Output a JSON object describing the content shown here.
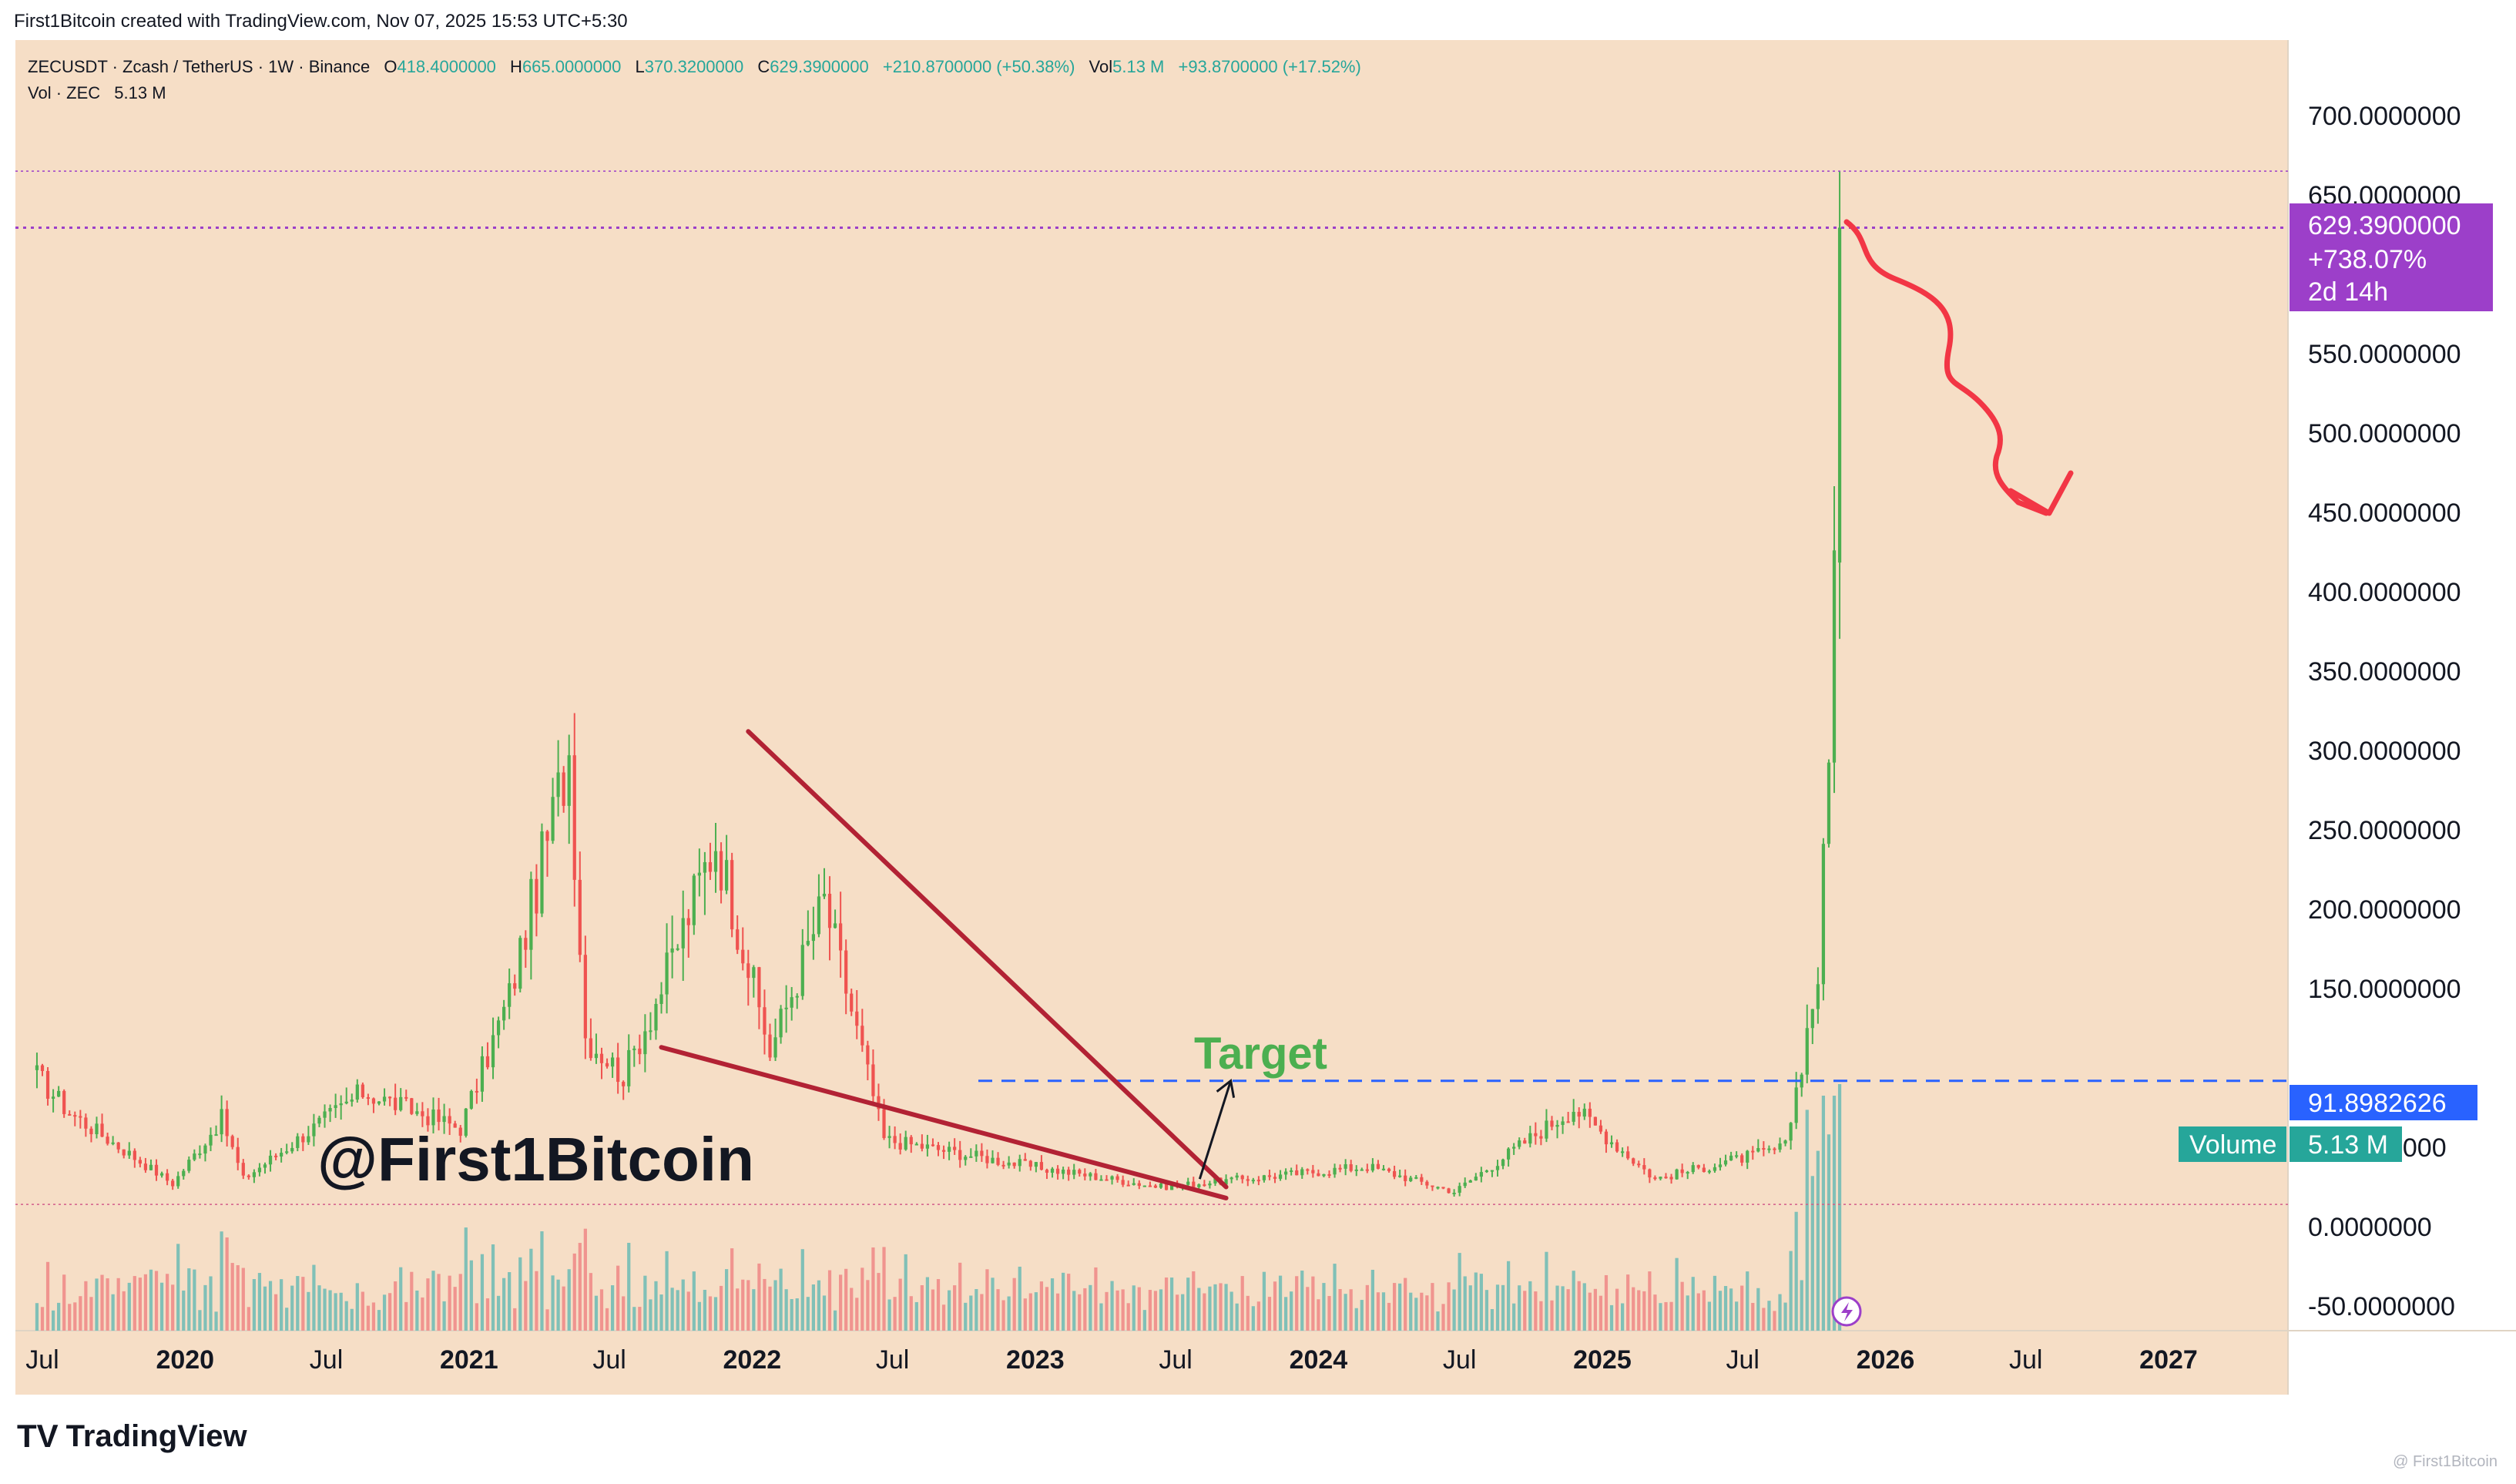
{
  "header": {
    "credit": "First1Bitcoin created with TradingView.com, Nov 07, 2025 15:53 UTC+5:30"
  },
  "legend": {
    "symbol": "ZECUSDT · Zcash / TetherUS · 1W · Binance",
    "o_label": "O",
    "o_value": "418.4000000",
    "h_label": "H",
    "h_value": "665.0000000",
    "l_label": "L",
    "l_value": "370.3200000",
    "c_label": "C",
    "c_value": "629.3900000",
    "change": "+210.8700000 (+50.38%)",
    "vol_label": "Vol",
    "vol_value": "5.13 M",
    "vol_change": "+93.8700000 (+17.52%)",
    "vol_series_label": "Vol · ZEC",
    "vol_series_value": "5.13 M"
  },
  "price_badge": {
    "price": "629.3900000",
    "change": "+738.07%",
    "countdown": "2d 14h"
  },
  "level_badge": {
    "value": "91.8982626"
  },
  "volume_badge": {
    "label": "Volume",
    "value": "5.13 M"
  },
  "annotations": {
    "watermark": "@First1Bitcoin",
    "target": "Target"
  },
  "footer": {
    "brand": "TradingView",
    "corner": "@ First1Bitcoin"
  },
  "colors": {
    "background": "#f6dec6",
    "up": "#4caf50",
    "down": "#ef5350",
    "vol_up": "#80c0b7",
    "vol_down": "#f0948f",
    "badge_price": "#9c3fc9",
    "badge_level": "#2962ff",
    "badge_volume": "#26a69a",
    "trendline": "#b22234",
    "arrow": "#f23645",
    "target": "#4caf50",
    "level_line": "#2962ff"
  },
  "chart_data": {
    "type": "candlestick",
    "title": "ZECUSDT · Zcash / TetherUS · 1W · Binance",
    "y_ticks": [
      700,
      650,
      550,
      500,
      450,
      400,
      350,
      300,
      250,
      200,
      150,
      50,
      0,
      -50
    ],
    "y_tick_labels": [
      "700.0000000",
      "650.0000000",
      "550.0000000",
      "500.0000000",
      "450.0000000",
      "400.0000000",
      "350.0000000",
      "300.0000000",
      "250.0000000",
      "200.0000000",
      "150.0000000",
      "50.0000000",
      "0.0000000",
      "-50.0000000"
    ],
    "ylim": [
      -65,
      760
    ],
    "x_ticks": [
      "Jul",
      "2020",
      "Jul",
      "2021",
      "Jul",
      "2022",
      "Jul",
      "2023",
      "Jul",
      "2024",
      "Jul",
      "2025",
      "Jul",
      "2026",
      "Jul",
      "2027"
    ],
    "x_tick_dates": [
      "2019-07-01",
      "2020-01-01",
      "2020-07-01",
      "2021-01-01",
      "2021-07-01",
      "2022-01-01",
      "2022-07-01",
      "2023-01-01",
      "2023-07-01",
      "2024-01-01",
      "2024-07-01",
      "2025-01-01",
      "2025-07-01",
      "2026-01-01",
      "2026-07-01",
      "2027-01-01"
    ],
    "key_points": [
      {
        "date": "2019-06-24",
        "close": 95
      },
      {
        "date": "2019-08-05",
        "close": 72
      },
      {
        "date": "2019-12-16",
        "close": 27
      },
      {
        "date": "2020-02-17",
        "close": 68
      },
      {
        "date": "2020-03-16",
        "close": 30
      },
      {
        "date": "2020-08-17",
        "close": 85
      },
      {
        "date": "2020-12-21",
        "close": 62
      },
      {
        "date": "2021-02-22",
        "close": 145
      },
      {
        "date": "2021-05-10",
        "close": 300
      },
      {
        "date": "2021-05-31",
        "close": 120
      },
      {
        "date": "2021-07-19",
        "close": 95
      },
      {
        "date": "2021-09-06",
        "close": 150
      },
      {
        "date": "2021-11-15",
        "close": 245
      },
      {
        "date": "2022-01-24",
        "close": 110
      },
      {
        "date": "2022-04-04",
        "close": 205
      },
      {
        "date": "2022-06-20",
        "close": 55
      },
      {
        "date": "2022-12-26",
        "close": 38
      },
      {
        "date": "2023-06-12",
        "close": 25
      },
      {
        "date": "2023-11-06",
        "close": 32
      },
      {
        "date": "2024-03-04",
        "close": 38
      },
      {
        "date": "2024-06-24",
        "close": 22
      },
      {
        "date": "2024-11-25",
        "close": 75
      },
      {
        "date": "2025-03-10",
        "close": 30
      },
      {
        "date": "2025-08-25",
        "close": 50
      },
      {
        "date": "2025-10-06",
        "close": 160
      },
      {
        "date": "2025-10-20",
        "close": 290
      },
      {
        "date": "2025-11-03",
        "close": 629.39
      }
    ],
    "last_candle": {
      "open": 418.4,
      "high": 665,
      "low": 370.32,
      "close": 629.39
    },
    "horizontal_level": 91.8982626,
    "volume": {
      "last": "5.13 M"
    }
  }
}
